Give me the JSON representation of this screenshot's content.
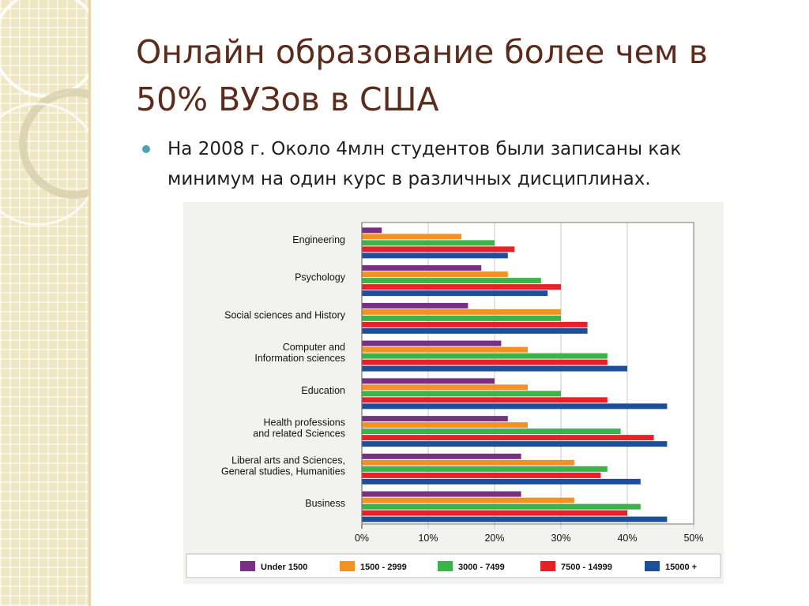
{
  "slide": {
    "title_line1": "Онлайн образование более чем в",
    "title_line2": "50% ВУЗов в США",
    "bullet_line1": "На 2008 г. Около 4млн студентов были записаны как",
    "bullet_line2": "минимум на один курс в различных дисциплинах."
  },
  "theme": {
    "title_color": "#5b2b1c",
    "bullet_color": "#4ba3ad"
  },
  "chart_data": {
    "type": "bar",
    "orientation": "horizontal",
    "categories": [
      [
        "Engineering"
      ],
      [
        "Psychology"
      ],
      [
        "Social sciences and History"
      ],
      [
        "Computer and",
        "Information sciences"
      ],
      [
        "Education"
      ],
      [
        "Health professions",
        "and related Sciences"
      ],
      [
        "Liberal arts and Sciences,",
        "General studies, Humanities"
      ],
      [
        "Business"
      ]
    ],
    "series": [
      {
        "name": "Under 1500",
        "color": "#7b2f82",
        "values": [
          3,
          18,
          16,
          21,
          20,
          22,
          24,
          24
        ]
      },
      {
        "name": "1500 - 2999",
        "color": "#f39223",
        "values": [
          15,
          22,
          30,
          25,
          25,
          25,
          32,
          32
        ]
      },
      {
        "name": "3000 - 7499",
        "color": "#3ab34a",
        "values": [
          20,
          27,
          30,
          37,
          30,
          39,
          37,
          42
        ]
      },
      {
        "name": "7500 - 14999",
        "color": "#e8202a",
        "values": [
          23,
          30,
          34,
          37,
          37,
          44,
          36,
          40
        ]
      },
      {
        "name": "15000 +",
        "color": "#1c4e9c",
        "values": [
          22,
          28,
          34,
          40,
          46,
          46,
          42,
          46
        ]
      }
    ],
    "x_ticks": [
      "0%",
      "10%",
      "20%",
      "30%",
      "40%",
      "50%"
    ],
    "xlim": [
      0,
      50
    ],
    "grid": true,
    "legend_position": "bottom"
  }
}
